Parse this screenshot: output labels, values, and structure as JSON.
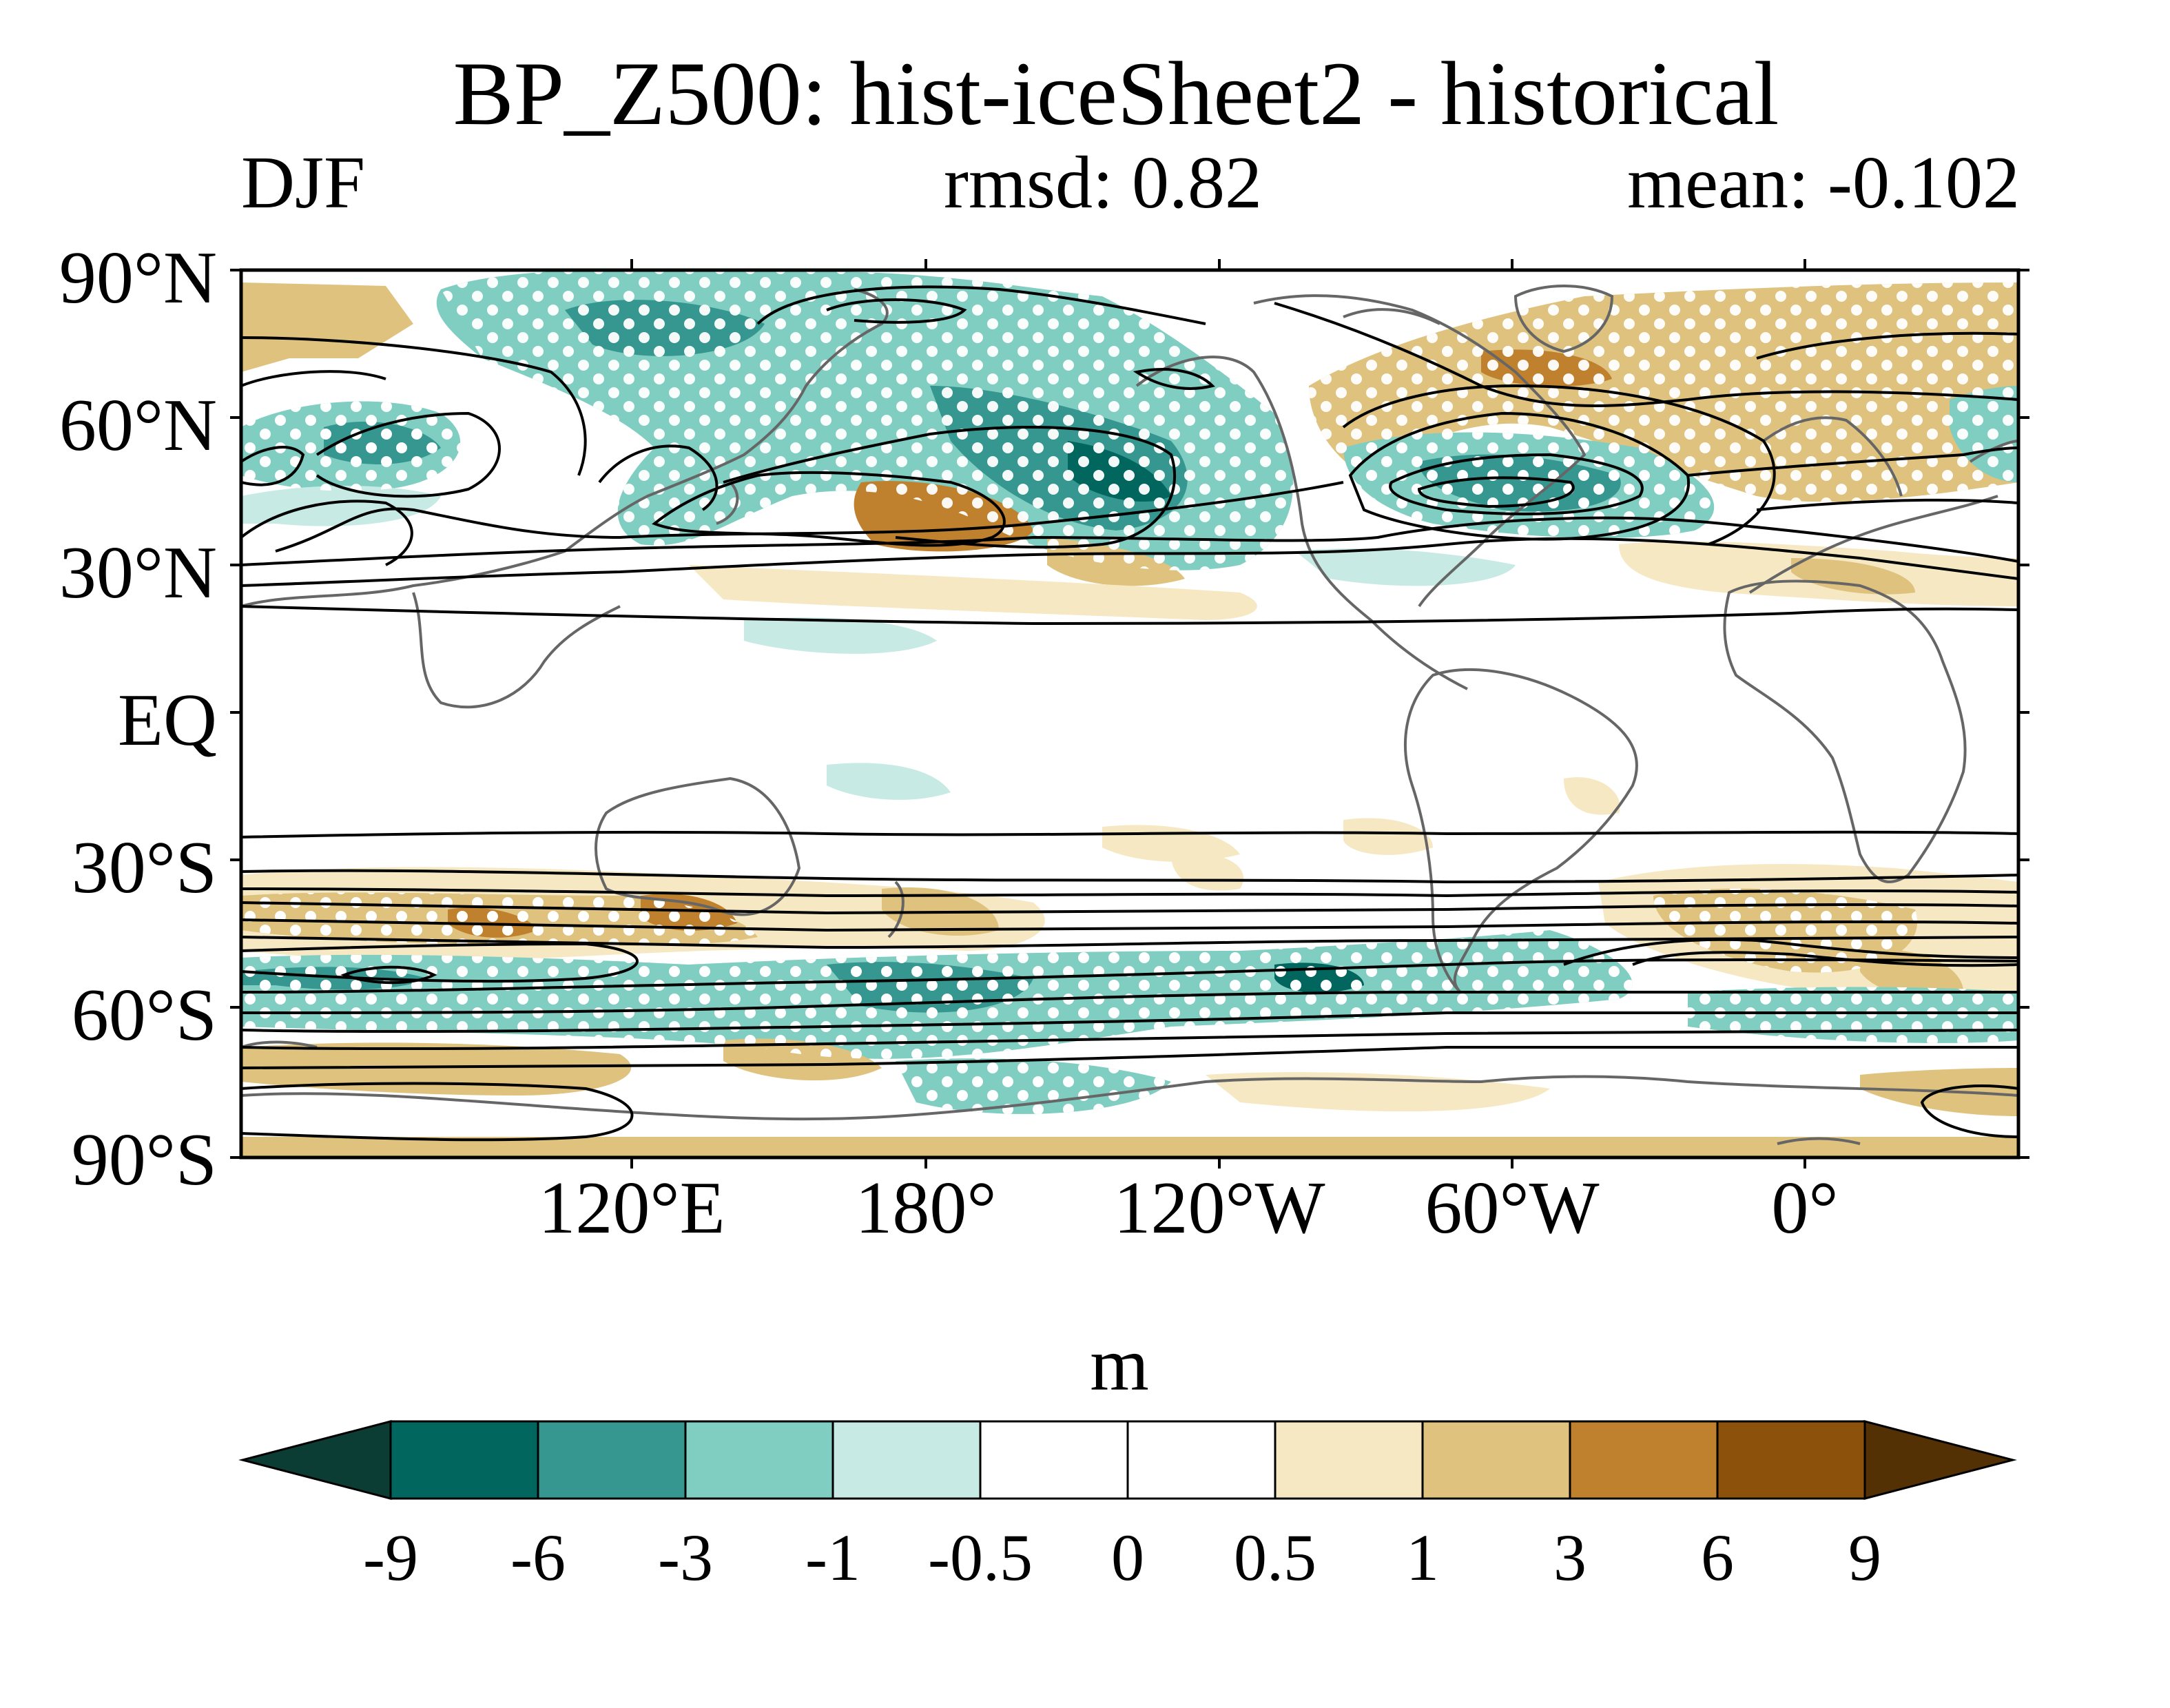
{
  "title": "BP_Z500: hist-iceSheet2 - historical",
  "season": "DJF",
  "rmsd": "rmsd: 0.82",
  "mean": "mean: -0.102",
  "lat_labels": [
    "90°N",
    "60°N",
    "30°N",
    "EQ",
    "30°S",
    "60°S",
    "90°S"
  ],
  "lon_labels": [
    "120°E",
    "180°",
    "120°W",
    "60°W",
    "0°"
  ],
  "colorbar": {
    "units": "m",
    "levels": [
      "-9",
      "-6",
      "-3",
      "-1",
      "-0.5",
      "0",
      "0.5",
      "1",
      "3",
      "6",
      "9"
    ],
    "colors": [
      "#0c3d35",
      "#01665e",
      "#35978f",
      "#80cdc1",
      "#c7eae5",
      "#ffffff",
      "#ffffff",
      "#f6e8c3",
      "#dfc27d",
      "#bf812d",
      "#8c510a",
      "#543005"
    ]
  },
  "map": {
    "projection": "cylindrical equidistant",
    "lon_range": "40°E eastward to 40°E (center 220°E)",
    "stippling": "white dots mark significant areas",
    "contours": "black lines: climatological field",
    "coastlines_color": "#666666"
  }
}
